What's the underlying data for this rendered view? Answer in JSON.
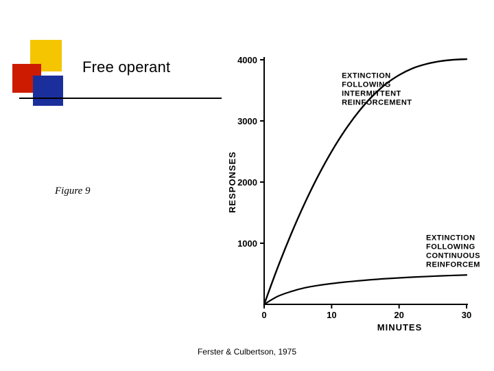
{
  "title": "Free operant",
  "figure_label": "Figure 9",
  "credit": "Ferster & Culbertson, 1975",
  "logo": {
    "colors": {
      "yellow": "#f4c500",
      "red": "#cc1b00",
      "blue": "#1b2f9c"
    }
  },
  "chart": {
    "type": "line",
    "xlabel": "MINUTES",
    "ylabel": "RESPONSES",
    "label_fontsize": 13,
    "label_font": "sans-serif",
    "label_color": "#000000",
    "axis_color": "#000000",
    "axis_width": 2,
    "background_color": "#ffffff",
    "xlim": [
      0,
      30
    ],
    "ylim": [
      0,
      4000
    ],
    "xticks": [
      0,
      10,
      20,
      30
    ],
    "yticks": [
      1000,
      2000,
      3000,
      4000
    ],
    "series": [
      {
        "name": "intermittent",
        "label_lines": [
          "EXTINCTION",
          "FOLLOWING",
          "INTERMITTENT",
          "REINFORCEMENT"
        ],
        "label_pos_minutes": 11.5,
        "label_pos_responses": 3700,
        "color": "#000000",
        "line_width": 2.4,
        "points": [
          [
            0,
            0
          ],
          [
            2,
            600
          ],
          [
            4,
            1150
          ],
          [
            6,
            1650
          ],
          [
            8,
            2100
          ],
          [
            10,
            2500
          ],
          [
            12,
            2850
          ],
          [
            14,
            3150
          ],
          [
            16,
            3400
          ],
          [
            18,
            3600
          ],
          [
            20,
            3750
          ],
          [
            22,
            3860
          ],
          [
            24,
            3930
          ],
          [
            26,
            3975
          ],
          [
            28,
            4000
          ],
          [
            30,
            4010
          ]
        ]
      },
      {
        "name": "continuous",
        "label_lines": [
          "EXTINCTION",
          "FOLLOWING",
          "CONTINUOUS",
          "REINFORCEMENT"
        ],
        "label_pos_minutes": 24,
        "label_pos_responses": 1050,
        "color": "#000000",
        "line_width": 2.2,
        "points": [
          [
            0,
            0
          ],
          [
            2,
            130
          ],
          [
            4,
            210
          ],
          [
            6,
            270
          ],
          [
            8,
            310
          ],
          [
            10,
            340
          ],
          [
            12,
            365
          ],
          [
            15,
            395
          ],
          [
            18,
            420
          ],
          [
            22,
            445
          ],
          [
            26,
            465
          ],
          [
            30,
            480
          ]
        ]
      }
    ]
  }
}
